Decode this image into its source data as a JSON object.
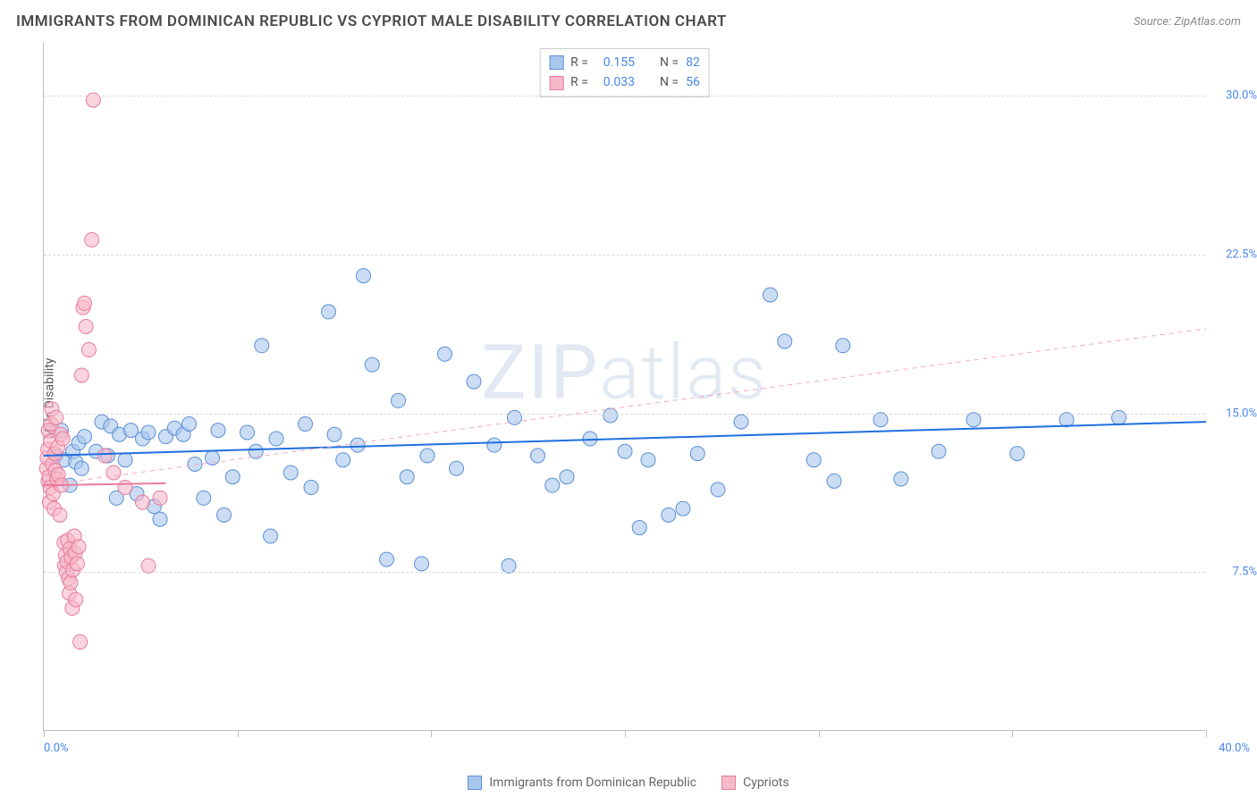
{
  "title": "IMMIGRANTS FROM DOMINICAN REPUBLIC VS CYPRIOT MALE DISABILITY CORRELATION CHART",
  "source": "Source: ZipAtlas.com",
  "ylabel": "Male Disability",
  "watermark_a": "ZIP",
  "watermark_b": "atlas",
  "chart": {
    "type": "scatter",
    "background_color": "#ffffff",
    "grid_color": "#d8d8d8",
    "axis_color": "#bdbdbd",
    "xlim": [
      0,
      40
    ],
    "ylim": [
      0,
      32.5
    ],
    "ytick_values": [
      7.5,
      15.0,
      22.5,
      30.0
    ],
    "ytick_labels": [
      "7.5%",
      "15.0%",
      "22.5%",
      "30.0%"
    ],
    "xtick_values": [
      0,
      6.67,
      13.33,
      20.0,
      26.67,
      33.33,
      40.0
    ],
    "xaxis_min_label": "0.0%",
    "xaxis_max_label": "40.0%",
    "tick_label_color": "#4a86e8",
    "tick_label_fontsize": 13,
    "marker_radius": 8,
    "marker_opacity": 0.6,
    "series": [
      {
        "name": "Immigrants from Dominican Republic",
        "fill_color": "#a9c7ed",
        "stroke_color": "#5a8fd6",
        "trend": {
          "y_at_xmin": 13.0,
          "y_at_xmax": 14.6,
          "color": "#1f6fe0",
          "width": 2,
          "dash": false
        },
        "trend_extrap": null,
        "r_label": "R  =",
        "r_value": "0.155",
        "n_label": "N  =",
        "n_value": "82",
        "points": [
          [
            0.4,
            13.0
          ],
          [
            0.6,
            14.2
          ],
          [
            0.7,
            12.8
          ],
          [
            0.9,
            11.6
          ],
          [
            1.0,
            13.2
          ],
          [
            1.1,
            12.7
          ],
          [
            1.2,
            13.6
          ],
          [
            1.3,
            12.4
          ],
          [
            1.4,
            13.9
          ],
          [
            1.8,
            13.2
          ],
          [
            2.0,
            14.6
          ],
          [
            2.2,
            13.0
          ],
          [
            2.3,
            14.4
          ],
          [
            2.5,
            11.0
          ],
          [
            2.6,
            14.0
          ],
          [
            2.8,
            12.8
          ],
          [
            3.0,
            14.2
          ],
          [
            3.2,
            11.2
          ],
          [
            3.4,
            13.8
          ],
          [
            3.6,
            14.1
          ],
          [
            3.8,
            10.6
          ],
          [
            4.0,
            10.0
          ],
          [
            4.2,
            13.9
          ],
          [
            4.5,
            14.3
          ],
          [
            4.8,
            14.0
          ],
          [
            5.0,
            14.5
          ],
          [
            5.2,
            12.6
          ],
          [
            5.5,
            11.0
          ],
          [
            5.8,
            12.9
          ],
          [
            6.0,
            14.2
          ],
          [
            6.2,
            10.2
          ],
          [
            6.5,
            12.0
          ],
          [
            7.0,
            14.1
          ],
          [
            7.3,
            13.2
          ],
          [
            7.5,
            18.2
          ],
          [
            7.8,
            9.2
          ],
          [
            8.0,
            13.8
          ],
          [
            8.5,
            12.2
          ],
          [
            9.0,
            14.5
          ],
          [
            9.2,
            11.5
          ],
          [
            9.8,
            19.8
          ],
          [
            10.0,
            14.0
          ],
          [
            10.3,
            12.8
          ],
          [
            10.8,
            13.5
          ],
          [
            11.0,
            21.5
          ],
          [
            11.3,
            17.3
          ],
          [
            11.8,
            8.1
          ],
          [
            12.2,
            15.6
          ],
          [
            12.5,
            12.0
          ],
          [
            13.0,
            7.9
          ],
          [
            13.2,
            13.0
          ],
          [
            13.8,
            17.8
          ],
          [
            14.2,
            12.4
          ],
          [
            14.8,
            16.5
          ],
          [
            15.5,
            13.5
          ],
          [
            16.0,
            7.8
          ],
          [
            16.2,
            14.8
          ],
          [
            17.0,
            13.0
          ],
          [
            17.5,
            11.6
          ],
          [
            18.0,
            12.0
          ],
          [
            18.8,
            13.8
          ],
          [
            19.5,
            14.9
          ],
          [
            20.0,
            13.2
          ],
          [
            20.5,
            9.6
          ],
          [
            20.8,
            12.8
          ],
          [
            21.5,
            10.2
          ],
          [
            22.0,
            10.5
          ],
          [
            22.5,
            13.1
          ],
          [
            23.2,
            11.4
          ],
          [
            24.0,
            14.6
          ],
          [
            25.0,
            20.6
          ],
          [
            25.5,
            18.4
          ],
          [
            26.5,
            12.8
          ],
          [
            27.2,
            11.8
          ],
          [
            27.5,
            18.2
          ],
          [
            28.8,
            14.7
          ],
          [
            29.5,
            11.9
          ],
          [
            30.8,
            13.2
          ],
          [
            32.0,
            14.7
          ],
          [
            33.5,
            13.1
          ],
          [
            35.2,
            14.7
          ],
          [
            37.0,
            14.8
          ]
        ]
      },
      {
        "name": "Cypriots",
        "fill_color": "#f6b9c9",
        "stroke_color": "#e87a9a",
        "trend": {
          "y_at_xmin": 11.6,
          "y_at_xmax": 12.5,
          "x_draw_max": 4.2,
          "color": "#e87a9a",
          "width": 2,
          "dash": false
        },
        "trend_extrap": {
          "y_at_xmin": 11.6,
          "y_at_xmax": 19.0,
          "color": "#f4a6bc",
          "width": 1,
          "dash": true
        },
        "r_label": "R  =",
        "r_value": "0.033",
        "n_label": "N  =",
        "n_value": "56",
        "points": [
          [
            0.1,
            12.4
          ],
          [
            0.12,
            12.9
          ],
          [
            0.14,
            13.3
          ],
          [
            0.15,
            11.8
          ],
          [
            0.16,
            14.2
          ],
          [
            0.18,
            12.0
          ],
          [
            0.2,
            10.8
          ],
          [
            0.22,
            11.5
          ],
          [
            0.24,
            13.7
          ],
          [
            0.25,
            14.5
          ],
          [
            0.28,
            15.2
          ],
          [
            0.3,
            12.6
          ],
          [
            0.32,
            11.2
          ],
          [
            0.35,
            10.5
          ],
          [
            0.38,
            13.1
          ],
          [
            0.4,
            12.3
          ],
          [
            0.42,
            14.8
          ],
          [
            0.45,
            11.9
          ],
          [
            0.48,
            13.4
          ],
          [
            0.5,
            12.1
          ],
          [
            0.55,
            10.2
          ],
          [
            0.58,
            14.0
          ],
          [
            0.6,
            11.6
          ],
          [
            0.65,
            13.8
          ],
          [
            0.7,
            8.9
          ],
          [
            0.72,
            7.8
          ],
          [
            0.75,
            8.3
          ],
          [
            0.78,
            7.5
          ],
          [
            0.8,
            8.0
          ],
          [
            0.82,
            9.0
          ],
          [
            0.85,
            7.2
          ],
          [
            0.88,
            6.5
          ],
          [
            0.9,
            8.6
          ],
          [
            0.92,
            7.0
          ],
          [
            0.95,
            8.2
          ],
          [
            0.98,
            5.8
          ],
          [
            1.0,
            7.6
          ],
          [
            1.05,
            9.2
          ],
          [
            1.08,
            8.4
          ],
          [
            1.1,
            6.2
          ],
          [
            1.15,
            7.9
          ],
          [
            1.2,
            8.7
          ],
          [
            1.25,
            4.2
          ],
          [
            1.3,
            16.8
          ],
          [
            1.35,
            20.0
          ],
          [
            1.4,
            20.2
          ],
          [
            1.45,
            19.1
          ],
          [
            1.55,
            18.0
          ],
          [
            1.65,
            23.2
          ],
          [
            1.7,
            29.8
          ],
          [
            2.1,
            13.0
          ],
          [
            2.4,
            12.2
          ],
          [
            2.8,
            11.5
          ],
          [
            3.4,
            10.8
          ],
          [
            3.6,
            7.8
          ],
          [
            4.0,
            11.0
          ]
        ]
      }
    ]
  },
  "bottom_legend": [
    {
      "label": "Immigrants from Dominican Republic",
      "fill": "#a9c7ed",
      "stroke": "#5a8fd6"
    },
    {
      "label": "Cypriots",
      "fill": "#f6b9c9",
      "stroke": "#e87a9a"
    }
  ]
}
